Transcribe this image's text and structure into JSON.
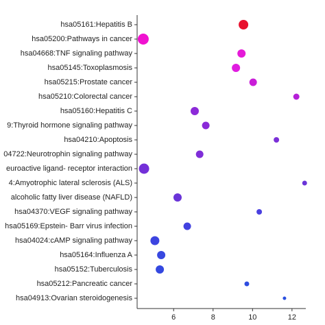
{
  "chart_data": {
    "type": "dot",
    "categories": [
      "hsa05161:Hepatitis B",
      "hsa05200:Pathways in cancer",
      "hsa04668:TNF signaling pathway",
      "hsa05145:Toxoplasmosis",
      "hsa05215:Prostate cancer",
      "hsa05210:Colorectal cancer",
      "hsa05160:Hepatitis C",
      "9:Thyroid hormone signaling pathway",
      "hsa04210:Apoptosis",
      "04722:Neurotrophin signaling pathway",
      "euroactive ligand- receptor interaction",
      "4:Amyotrophic lateral sclerosis (ALS)",
      "alcoholic fatty liver disease (NAFLD)",
      "hsa04370:VEGF signaling pathway",
      "hsa05169:Epstein- Barr virus infection",
      "hsa04024:cAMP signaling pathway",
      "hsa05164:Influenza A",
      "hsa05152:Tuberculosis",
      "hsa05212:Pancreatic cancer",
      "hsa04913:Ovarian steroidogenesis"
    ],
    "values": [
      9.54,
      4.46,
      9.44,
      9.16,
      10.03,
      12.22,
      7.07,
      7.63,
      11.21,
      7.32,
      4.5,
      12.64,
      6.2,
      10.34,
      6.69,
      5.05,
      5.37,
      5.3,
      9.71,
      11.62
    ],
    "sizes": [
      7,
      8,
      6,
      6,
      5.5,
      4.5,
      6,
      5.5,
      4,
      5.5,
      7.5,
      3.5,
      6,
      4,
      5.5,
      6.5,
      6,
      6,
      3.5,
      2.5
    ],
    "colors": [
      "#e8112d",
      "#f012d0",
      "#e51ad8",
      "#e01ce0",
      "#c91ed8",
      "#b520d8",
      "#8c2ad8",
      "#8a2ad8",
      "#7b30d8",
      "#7f2ed8",
      "#7330d8",
      "#6a34d8",
      "#6a34d8",
      "#4a40e0",
      "#4242e0",
      "#3c44e0",
      "#3848e0",
      "#3448e0",
      "#2e4ce0",
      "#2a50e0"
    ],
    "xlim": [
      4.15,
      12.7
    ],
    "xticks": [
      6,
      8,
      10,
      12
    ]
  }
}
